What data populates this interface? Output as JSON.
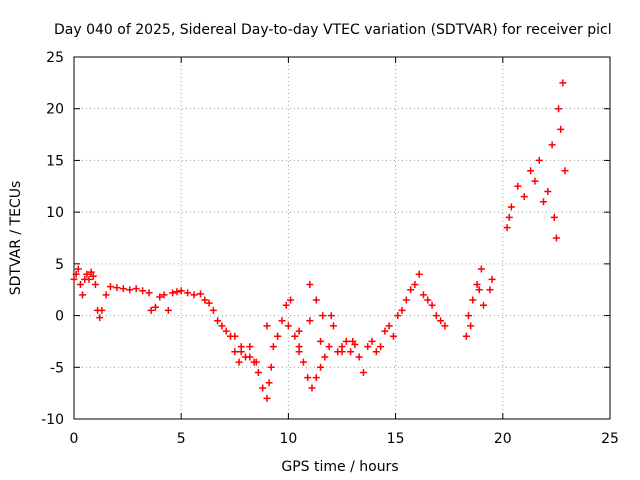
{
  "chart_data": {
    "type": "scatter",
    "title": "Day 040 of 2025, Sidereal Day-to-day VTEC variation (SDTVAR) for receiver picl",
    "xlabel": "GPS time / hours",
    "ylabel": "SDTVAR / TECUs",
    "xlim": [
      0,
      25
    ],
    "ylim": [
      -10,
      25
    ],
    "xticks": [
      0,
      5,
      10,
      15,
      20,
      25
    ],
    "yticks": [
      -10,
      -5,
      0,
      5,
      10,
      15,
      20,
      25
    ],
    "grid": true,
    "marker": "+",
    "color": "#ff0000",
    "series": [
      {
        "name": "SDTVAR",
        "x": [
          0.0,
          0.1,
          0.2,
          0.3,
          0.4,
          0.5,
          0.6,
          0.7,
          0.8,
          0.9,
          1.0,
          1.1,
          1.2,
          1.3,
          1.5,
          1.7,
          2.0,
          2.3,
          2.6,
          2.9,
          3.2,
          3.5,
          3.6,
          3.8,
          4.0,
          4.2,
          4.4,
          4.6,
          4.8,
          5.0,
          5.3,
          5.6,
          5.9,
          6.1,
          6.3,
          6.5,
          6.7,
          6.9,
          7.1,
          7.3,
          7.5,
          7.7,
          7.8,
          8.0,
          8.2,
          8.4,
          8.6,
          8.8,
          9.0,
          9.1,
          9.2,
          9.3,
          9.5,
          9.7,
          9.9,
          10.1,
          10.3,
          10.5,
          10.7,
          10.9,
          11.1,
          11.3,
          11.5,
          11.7,
          11.9,
          12.1,
          12.3,
          12.5,
          12.7,
          12.9,
          13.1,
          13.3,
          13.5,
          13.7,
          13.9,
          14.1,
          14.3,
          14.5,
          14.7,
          14.9,
          15.1,
          15.3,
          15.5,
          15.7,
          15.9,
          16.1,
          16.3,
          16.5,
          16.7,
          16.9,
          17.1,
          17.3,
          18.3,
          18.4,
          18.5,
          18.6,
          18.8,
          18.9,
          19.0,
          19.1,
          19.4,
          19.5,
          20.2,
          20.3,
          20.4,
          20.7,
          21.0,
          21.3,
          21.5,
          21.7,
          21.9,
          22.1,
          22.3,
          22.4,
          22.5,
          22.6,
          22.7,
          22.8,
          22.9,
          9.0,
          9.5,
          10.0,
          10.5,
          11.0,
          11.5,
          12.0,
          8.5,
          10.5,
          11.0,
          11.3,
          11.6,
          12.5,
          13.0,
          7.5,
          7.8,
          8.2
        ],
        "y": [
          3.5,
          4.0,
          4.5,
          3.0,
          2.0,
          3.5,
          4.0,
          3.5,
          4.2,
          3.8,
          3.0,
          0.5,
          -0.2,
          0.5,
          2.0,
          2.8,
          2.7,
          2.6,
          2.5,
          2.6,
          2.4,
          2.2,
          0.5,
          0.8,
          1.8,
          2.0,
          0.5,
          2.2,
          2.3,
          2.4,
          2.2,
          2.0,
          2.1,
          1.5,
          1.2,
          0.5,
          -0.5,
          -1.0,
          -1.5,
          -2.0,
          -3.5,
          -4.5,
          -3.0,
          -4.0,
          -3.0,
          -4.5,
          -5.5,
          -7.0,
          -8.0,
          -6.5,
          -5.0,
          -3.0,
          -2.0,
          -0.5,
          1.0,
          1.5,
          -2.0,
          -3.0,
          -4.5,
          -6.0,
          -7.0,
          -6.0,
          -5.0,
          -4.0,
          -3.0,
          -1.0,
          -3.5,
          -3.0,
          -2.5,
          -3.5,
          -2.8,
          -4.0,
          -5.5,
          -3.0,
          -2.5,
          -3.5,
          -3.0,
          -1.5,
          -1.0,
          -2.0,
          0.0,
          0.5,
          1.5,
          2.5,
          3.0,
          4.0,
          2.0,
          1.5,
          1.0,
          0.0,
          -0.5,
          -1.0,
          -2.0,
          0.0,
          -1.0,
          1.5,
          3.0,
          2.5,
          4.5,
          1.0,
          2.5,
          3.5,
          8.5,
          9.5,
          10.5,
          12.5,
          11.5,
          14.0,
          13.0,
          15.0,
          11.0,
          12.0,
          16.5,
          9.5,
          7.5,
          20.0,
          18.0,
          22.5,
          14.0,
          -1.0,
          -2.0,
          -1.0,
          -1.5,
          -0.5,
          -2.5,
          0.0,
          -4.5,
          -3.5,
          3.0,
          1.5,
          0.0,
          -3.5,
          -2.5,
          -2.0,
          -3.5,
          -4.0
        ]
      }
    ]
  }
}
